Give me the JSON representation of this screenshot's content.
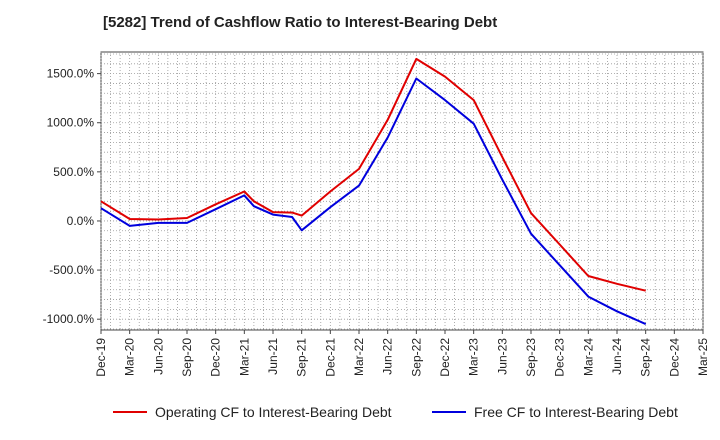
{
  "chart_data": {
    "type": "line",
    "title": "[5282]  Trend of Cashflow Ratio to Interest-Bearing Debt",
    "x": [
      "Dec-19",
      "Mar-20",
      "Jun-20",
      "Sep-20",
      "Dec-20",
      "Mar-21",
      "Jun-21",
      "Sep-21",
      "Dec-21",
      "Mar-22",
      "Jun-22",
      "Sep-22",
      "Dec-22",
      "Mar-23",
      "Jun-23",
      "Sep-23",
      "Dec-23",
      "Mar-24",
      "Jun-24",
      "Sep-24",
      "Dec-24",
      "Mar-25"
    ],
    "x_tick_labels": [
      "Dec-19",
      "Mar-20",
      "Jun-20",
      "Sep-20",
      "Dec-20",
      "Mar-21",
      "Jun-21",
      "Sep-21",
      "Dec-21",
      "Mar-22",
      "Jun-22",
      "Sep-22",
      "Dec-22",
      "Mar-23",
      "Jun-23",
      "Sep-23",
      "Dec-23",
      "Mar-24",
      "Jun-24",
      "Sep-24",
      "Dec-24",
      "Mar-25"
    ],
    "y_ticks": [
      1500,
      1000,
      500,
      0,
      -500,
      -1000
    ],
    "y_tick_labels": [
      "1500.0%",
      "1000.0%",
      "500.0%",
      "0.0%",
      "-500.0%",
      "-1000.0%"
    ],
    "ylim": [
      -1110,
      1720
    ],
    "grid": true,
    "legend_position": "bottom",
    "series": [
      {
        "name": "Operating CF to Interest-Bearing Debt",
        "color": "#e00000",
        "x": [
          "Dec-19",
          "Mar-20",
          "Jun-20",
          "Sep-20",
          "Dec-20",
          "Mar-21",
          "Apr-21",
          "Jun-21",
          "Aug-21",
          "Sep-21",
          "Dec-21",
          "Mar-22",
          "Jun-22",
          "Sep-22",
          "Dec-22",
          "Mar-23",
          "Jun-23",
          "Sep-23",
          "Dec-23",
          "Mar-24",
          "Jun-24",
          "Sep-24"
        ],
        "values": [
          200,
          20,
          15,
          30,
          170,
          300,
          200,
          90,
          85,
          55,
          300,
          530,
          1030,
          1650,
          1470,
          1230,
          650,
          80,
          -240,
          -560,
          -640,
          -710
        ]
      },
      {
        "name": "Free CF to Interest-Bearing Debt",
        "color": "#0000dd",
        "x": [
          "Dec-19",
          "Mar-20",
          "Jun-20",
          "Sep-20",
          "Dec-20",
          "Mar-21",
          "Apr-21",
          "Jun-21",
          "Aug-21",
          "Sep-21",
          "Dec-21",
          "Mar-22",
          "Jun-22",
          "Sep-22",
          "Dec-22",
          "Mar-23",
          "Jun-23",
          "Sep-23",
          "Dec-23",
          "Mar-24",
          "Jun-24",
          "Sep-24"
        ],
        "values": [
          130,
          -50,
          -20,
          -20,
          120,
          260,
          150,
          65,
          40,
          -95,
          140,
          360,
          850,
          1450,
          1230,
          990,
          420,
          -130,
          -450,
          -770,
          -920,
          -1050
        ]
      }
    ]
  }
}
